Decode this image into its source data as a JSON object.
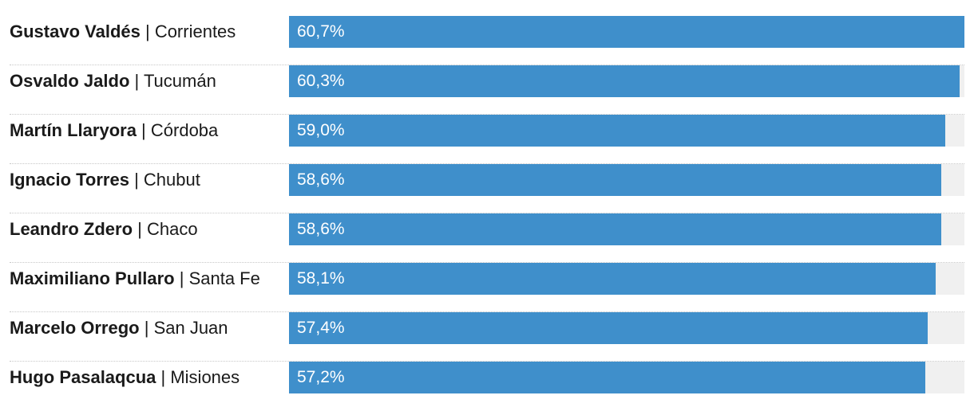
{
  "chart_data": {
    "type": "bar",
    "orientation": "horizontal",
    "bar_color": "#3f8fcb",
    "track_color": "#f0f0f0",
    "xlim": [
      0,
      60.7
    ],
    "categories": [
      {
        "name": "Gustavo Valdés",
        "province": "Corrientes",
        "value": 60.7,
        "label": "60,7%"
      },
      {
        "name": "Osvaldo Jaldo",
        "province": "Tucumán",
        "value": 60.3,
        "label": "60,3%"
      },
      {
        "name": "Martín Llaryora",
        "province": "Córdoba",
        "value": 59.0,
        "label": "59,0%"
      },
      {
        "name": "Ignacio Torres",
        "province": "Chubut",
        "value": 58.6,
        "label": "58,6%"
      },
      {
        "name": "Leandro Zdero",
        "province": "Chaco",
        "value": 58.6,
        "label": "58,6%"
      },
      {
        "name": "Maximiliano Pullaro",
        "province": "Santa Fe",
        "value": 58.1,
        "label": "58,1%"
      },
      {
        "name": "Marcelo Orrego",
        "province": "San Juan",
        "value": 57.4,
        "label": "57,4%"
      },
      {
        "name": "Hugo Pasalaqcua",
        "province": "Misiones",
        "value": 57.2,
        "label": "57,2%"
      }
    ]
  }
}
